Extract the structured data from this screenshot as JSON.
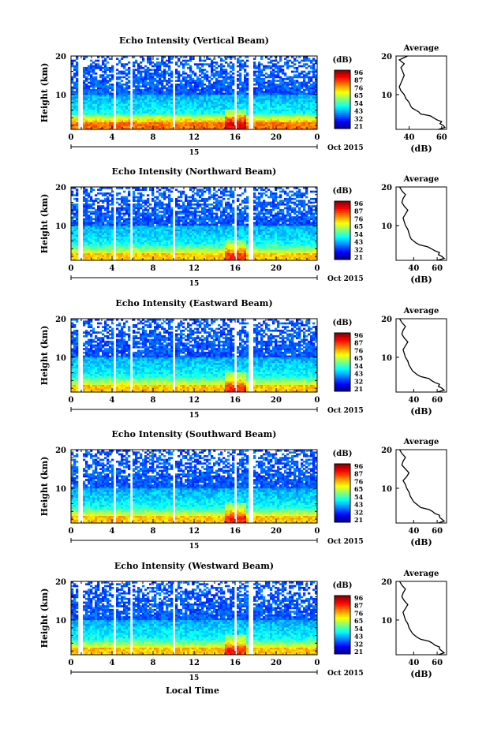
{
  "figure_xlabel": "Local Time",
  "chart_data": [
    {
      "type": "heatmap",
      "title": "Echo Intensity (Vertical Beam)",
      "ylabel": "Height (km)",
      "x_ticks": [
        "0",
        "4",
        "8",
        "12",
        "16",
        "20",
        "0"
      ],
      "y_ticks": [
        "20",
        "10"
      ],
      "date_label": "15",
      "date_suffix": "Oct 2015",
      "xlim": [
        0,
        24
      ],
      "ylim": [
        1,
        20
      ],
      "colorbar": {
        "unit": "(dB)",
        "ticks": [
          "96",
          "87",
          "76",
          "65",
          "54",
          "43",
          "32",
          "21"
        ],
        "range": [
          21,
          96
        ]
      },
      "data_gaps_hours": [
        [
          0.8,
          1.1
        ],
        [
          4.1,
          4.4
        ],
        [
          5.8,
          6.1
        ],
        [
          9.9,
          10.2
        ],
        [
          15.9,
          16.1
        ],
        [
          17.3,
          17.7
        ]
      ],
      "profile": {
        "title": "Average",
        "xlabel": "(dB)",
        "x_ticks": [
          "40",
          "60"
        ],
        "y_ticks": [
          "20",
          "10"
        ],
        "xlim": [
          32,
          63
        ],
        "height_km": [
          1.0,
          1.5,
          2,
          2.5,
          3,
          3.5,
          4,
          4.5,
          5,
          5.5,
          6,
          6.5,
          7,
          8,
          9,
          10,
          11,
          12,
          13,
          14,
          15,
          16,
          17,
          18,
          19,
          20
        ],
        "db": [
          58,
          62,
          61,
          59,
          60,
          57,
          55,
          53,
          47,
          46,
          44,
          42,
          41,
          40,
          38,
          37,
          35,
          34,
          35,
          36,
          37,
          36,
          35,
          37,
          34,
          39
        ]
      }
    },
    {
      "type": "heatmap",
      "title": "Echo Intensity (Northward Beam)",
      "ylabel": "Height (km)",
      "x_ticks": [
        "0",
        "4",
        "8",
        "12",
        "16",
        "20",
        "0"
      ],
      "y_ticks": [
        "20",
        "10"
      ],
      "date_label": "15",
      "date_suffix": "Oct 2015",
      "xlim": [
        0,
        24
      ],
      "ylim": [
        1,
        20
      ],
      "colorbar": {
        "unit": "(dB)",
        "ticks": [
          "96",
          "87",
          "76",
          "65",
          "54",
          "43",
          "32",
          "21"
        ],
        "range": [
          21,
          96
        ]
      },
      "data_gaps_hours": [
        [
          0.8,
          1.1
        ],
        [
          4.1,
          4.4
        ],
        [
          5.8,
          6.1
        ],
        [
          9.9,
          10.2
        ],
        [
          15.9,
          16.1
        ],
        [
          17.3,
          17.7
        ]
      ],
      "profile": {
        "title": "Average",
        "xlabel": "(dB)",
        "x_ticks": [
          "40",
          "60"
        ],
        "y_ticks": [
          "20",
          "10"
        ],
        "xlim": [
          25,
          68
        ],
        "height_km": [
          1.0,
          1.5,
          2,
          2.5,
          3,
          3.5,
          4,
          4.5,
          5,
          5.5,
          6,
          6.5,
          7,
          8,
          9,
          10,
          11,
          12,
          13,
          14,
          15,
          16,
          17,
          18,
          19,
          20
        ],
        "db": [
          60,
          66,
          64,
          61,
          62,
          58,
          55,
          52,
          45,
          42,
          40,
          38,
          37,
          36,
          35,
          33,
          32,
          31,
          33,
          35,
          32,
          30,
          31,
          33,
          30,
          28
        ]
      }
    },
    {
      "type": "heatmap",
      "title": "Echo Intensity (Eastward Beam)",
      "ylabel": "Height (km)",
      "x_ticks": [
        "0",
        "4",
        "8",
        "12",
        "16",
        "20",
        "0"
      ],
      "y_ticks": [
        "20",
        "10"
      ],
      "date_label": "15",
      "date_suffix": "Oct 2015",
      "xlim": [
        0,
        24
      ],
      "ylim": [
        1,
        20
      ],
      "colorbar": {
        "unit": "(dB)",
        "ticks": [
          "96",
          "87",
          "76",
          "65",
          "54",
          "43",
          "32",
          "21"
        ],
        "range": [
          21,
          96
        ]
      },
      "data_gaps_hours": [
        [
          0.8,
          1.1
        ],
        [
          4.1,
          4.4
        ],
        [
          5.8,
          6.1
        ],
        [
          9.9,
          10.2
        ],
        [
          15.9,
          16.1
        ],
        [
          17.3,
          17.7
        ]
      ],
      "profile": {
        "title": "Average",
        "xlabel": "(dB)",
        "x_ticks": [
          "40",
          "60"
        ],
        "y_ticks": [
          "20",
          "10"
        ],
        "xlim": [
          25,
          68
        ],
        "height_km": [
          1.0,
          1.5,
          2,
          2.5,
          3,
          3.5,
          4,
          4.5,
          5,
          5.5,
          6,
          6.5,
          7,
          8,
          9,
          10,
          11,
          12,
          13,
          14,
          15,
          16,
          17,
          18,
          19,
          20
        ],
        "db": [
          60,
          66,
          64,
          61,
          62,
          58,
          55,
          53,
          46,
          43,
          41,
          39,
          38,
          36,
          35,
          33,
          32,
          31,
          33,
          35,
          32,
          30,
          31,
          33,
          30,
          28
        ]
      }
    },
    {
      "type": "heatmap",
      "title": "Echo Intensity (Southward Beam)",
      "ylabel": "Height (km)",
      "x_ticks": [
        "0",
        "4",
        "8",
        "12",
        "16",
        "20",
        "0"
      ],
      "y_ticks": [
        "20",
        "10"
      ],
      "date_label": "15",
      "date_suffix": "Oct 2015",
      "xlim": [
        0,
        24
      ],
      "ylim": [
        1,
        20
      ],
      "colorbar": {
        "unit": "(dB)",
        "ticks": [
          "96",
          "87",
          "76",
          "65",
          "54",
          "43",
          "32",
          "21"
        ],
        "range": [
          21,
          96
        ]
      },
      "data_gaps_hours": [
        [
          0.8,
          1.1
        ],
        [
          4.1,
          4.4
        ],
        [
          5.8,
          6.1
        ],
        [
          9.9,
          10.2
        ],
        [
          15.9,
          16.1
        ],
        [
          17.3,
          17.7
        ]
      ],
      "profile": {
        "title": "Average",
        "xlabel": "(dB)",
        "x_ticks": [
          "40",
          "60"
        ],
        "y_ticks": [
          "20",
          "10"
        ],
        "xlim": [
          25,
          68
        ],
        "height_km": [
          1.0,
          1.5,
          2,
          2.5,
          3,
          3.5,
          4,
          4.5,
          5,
          5.5,
          6,
          6.5,
          7,
          8,
          9,
          10,
          11,
          12,
          13,
          14,
          15,
          16,
          17,
          18,
          19,
          20
        ],
        "db": [
          61,
          66,
          64,
          62,
          62,
          58,
          56,
          53,
          46,
          44,
          42,
          40,
          39,
          37,
          36,
          34,
          33,
          31,
          34,
          36,
          33,
          30,
          31,
          33,
          30,
          28
        ]
      }
    },
    {
      "type": "heatmap",
      "title": "Echo Intensity (Westward Beam)",
      "ylabel": "Height (km)",
      "x_ticks": [
        "0",
        "4",
        "8",
        "12",
        "16",
        "20",
        "0"
      ],
      "y_ticks": [
        "20",
        "10"
      ],
      "date_label": "15",
      "date_suffix": "Oct 2015",
      "xlim": [
        0,
        24
      ],
      "ylim": [
        1,
        20
      ],
      "colorbar": {
        "unit": "(dB)",
        "ticks": [
          "96",
          "87",
          "76",
          "65",
          "54",
          "43",
          "32",
          "21"
        ],
        "range": [
          21,
          96
        ]
      },
      "data_gaps_hours": [
        [
          0.8,
          1.1
        ],
        [
          4.1,
          4.4
        ],
        [
          5.8,
          6.1
        ],
        [
          9.9,
          10.2
        ],
        [
          15.9,
          16.1
        ],
        [
          17.3,
          17.7
        ]
      ],
      "profile": {
        "title": "Average",
        "xlabel": "(dB)",
        "x_ticks": [
          "40",
          "60"
        ],
        "y_ticks": [
          "20",
          "10"
        ],
        "xlim": [
          25,
          68
        ],
        "height_km": [
          1.0,
          1.5,
          2,
          2.5,
          3,
          3.5,
          4,
          4.5,
          5,
          5.5,
          6,
          6.5,
          7,
          8,
          9,
          10,
          11,
          12,
          13,
          14,
          15,
          16,
          17,
          18,
          19,
          20
        ],
        "db": [
          61,
          66,
          64,
          62,
          62,
          58,
          56,
          53,
          46,
          43,
          41,
          39,
          38,
          36,
          35,
          33,
          32,
          31,
          33,
          35,
          32,
          30,
          31,
          33,
          30,
          28
        ]
      }
    }
  ]
}
